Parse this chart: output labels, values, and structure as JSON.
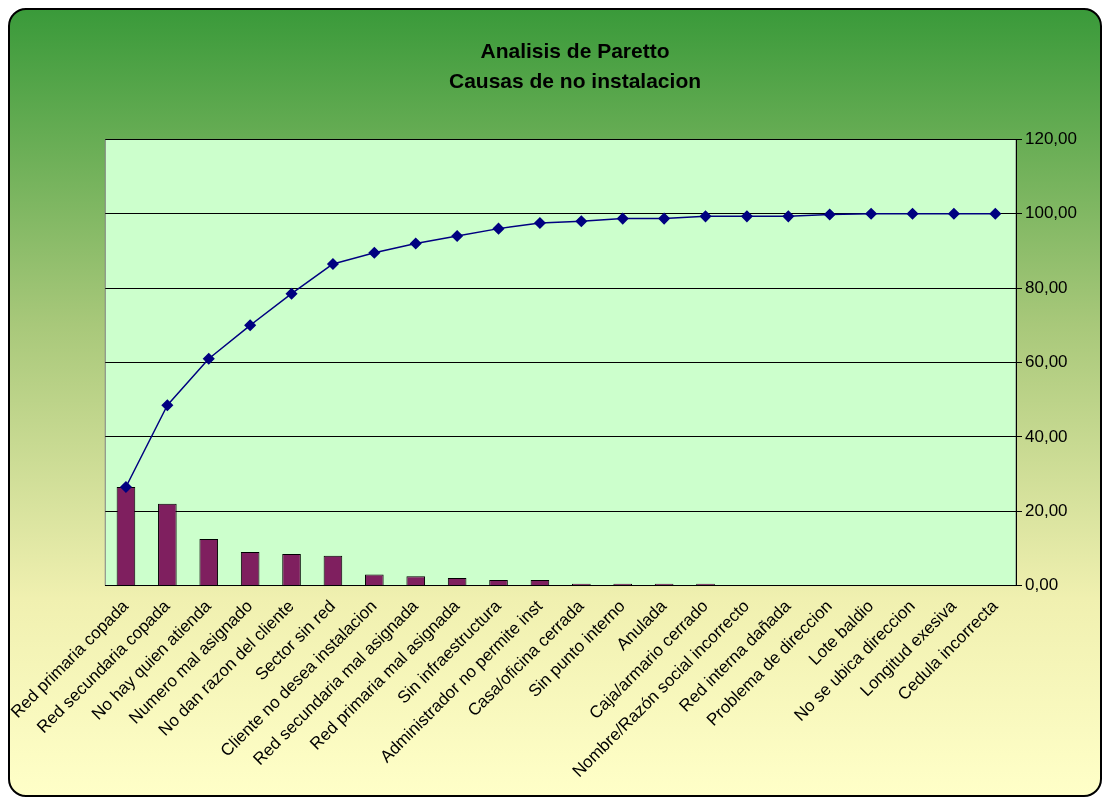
{
  "chart_data": {
    "type": "bar",
    "title": "Analisis de Paretto",
    "subtitle": "Causas de no instalacion",
    "categories": [
      "Red primaria copada",
      "Red secundaria copada",
      "No hay quien atienda",
      "Numero mal asignado",
      "No dan razon del cliente",
      "Sector sin red",
      "Cliente no desea instalacion",
      "Red secundaria mal asignada",
      "Red primaria mal asignada",
      "Sin infraestructura",
      "Administrador no permite inst",
      "Casa/oficina cerrada",
      "Sin punto interno",
      "Anulada",
      "Caja/armario cerrado",
      "Nombre/Razón social incorrecto",
      "Red interna dañada",
      "Problema de direccion",
      "Lote baldio",
      "No se ubica direccion",
      "Longitud exesiva",
      "Cedula incorrecta"
    ],
    "series": [
      {
        "color": "#7f1f5f",
        "values": [
          26.5,
          22,
          12.5,
          9,
          8.5,
          8,
          3,
          2.5,
          2,
          1.5,
          1.5,
          0.5,
          0.5,
          0.5,
          0.5,
          0,
          0,
          0,
          0,
          0,
          0,
          0
        ]
      },
      {
        "type": "line",
        "color": "#000080",
        "marker": "diamond",
        "values": [
          26.5,
          48.5,
          61,
          70,
          78.5,
          86.5,
          89.5,
          92,
          94,
          96,
          97.5,
          98,
          98.7,
          98.7,
          99.3,
          99.3,
          99.3,
          99.8,
          100,
          100,
          100,
          100
        ]
      }
    ],
    "ylim": [
      0,
      120
    ],
    "yticks": [
      {
        "value": 0,
        "label": "0,00"
      },
      {
        "value": 20,
        "label": "20,00"
      },
      {
        "value": 40,
        "label": "40,00"
      },
      {
        "value": 60,
        "label": "60,00"
      },
      {
        "value": 80,
        "label": "80,00"
      },
      {
        "value": 100,
        "label": "100,00"
      },
      {
        "value": 120,
        "label": "120,00"
      }
    ],
    "grid": "y",
    "legend": false
  }
}
